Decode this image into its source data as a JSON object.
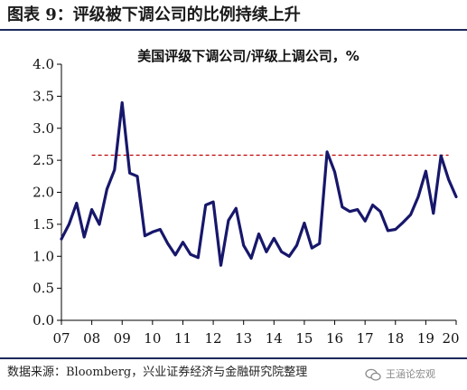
{
  "figure_title": "图表 9：评级被下调公司的比例持续上升",
  "source_note": "数据来源：Bloomberg，兴业证券经济与金融研究院整理",
  "watermark_text": "王涵论宏观",
  "colors": {
    "line": "#17176b",
    "reference_line": "#c00000",
    "rule": "#1c2a5c"
  },
  "chart_data": {
    "type": "line",
    "title": "美国评级下调公司/评级上调公司，%",
    "xlabel": "",
    "ylabel": "",
    "ylim": [
      0.0,
      4.0
    ],
    "yticks": [
      "0.0",
      "0.5",
      "1.0",
      "1.5",
      "2.0",
      "2.5",
      "3.0",
      "3.5",
      "4.0"
    ],
    "x_tick_labels": [
      "07",
      "08",
      "09",
      "10",
      "11",
      "12",
      "13",
      "14",
      "15",
      "16",
      "17",
      "18",
      "19",
      "20"
    ],
    "xlim": [
      2007.0,
      2020.0
    ],
    "grid": false,
    "series": [
      {
        "x": [
          2007.0,
          2007.25,
          2007.5,
          2007.75,
          2008.0,
          2008.25,
          2008.5,
          2008.75,
          2009.0,
          2009.25,
          2009.5,
          2009.75,
          2010.0,
          2010.25,
          2010.5,
          2010.75,
          2011.0,
          2011.25,
          2011.5,
          2011.75,
          2012.0,
          2012.25,
          2012.5,
          2012.75,
          2013.0,
          2013.25,
          2013.5,
          2013.75,
          2014.0,
          2014.25,
          2014.5,
          2014.75,
          2015.0,
          2015.25,
          2015.5,
          2015.75,
          2016.0,
          2016.25,
          2016.5,
          2016.75,
          2017.0,
          2017.25,
          2017.5,
          2017.75,
          2018.0,
          2018.25,
          2018.5,
          2018.75,
          2019.0,
          2019.25,
          2019.5,
          2019.75,
          2020.0
        ],
        "values": [
          1.27,
          1.5,
          1.83,
          1.3,
          1.73,
          1.5,
          2.05,
          2.35,
          3.4,
          2.3,
          2.25,
          1.32,
          1.38,
          1.42,
          1.2,
          1.02,
          1.22,
          1.03,
          0.98,
          1.8,
          1.85,
          0.86,
          1.56,
          1.75,
          1.17,
          0.97,
          1.35,
          1.07,
          1.28,
          1.07,
          1.0,
          1.17,
          1.52,
          1.13,
          1.2,
          2.63,
          2.32,
          1.77,
          1.7,
          1.73,
          1.55,
          1.8,
          1.7,
          1.4,
          1.42,
          1.53,
          1.65,
          1.93,
          2.33,
          1.67,
          2.57,
          2.2,
          1.93
        ]
      }
    ],
    "reference_line": {
      "y": 2.58,
      "x_start": 2008.0,
      "x_end": 2019.75,
      "style": "dashed"
    }
  }
}
